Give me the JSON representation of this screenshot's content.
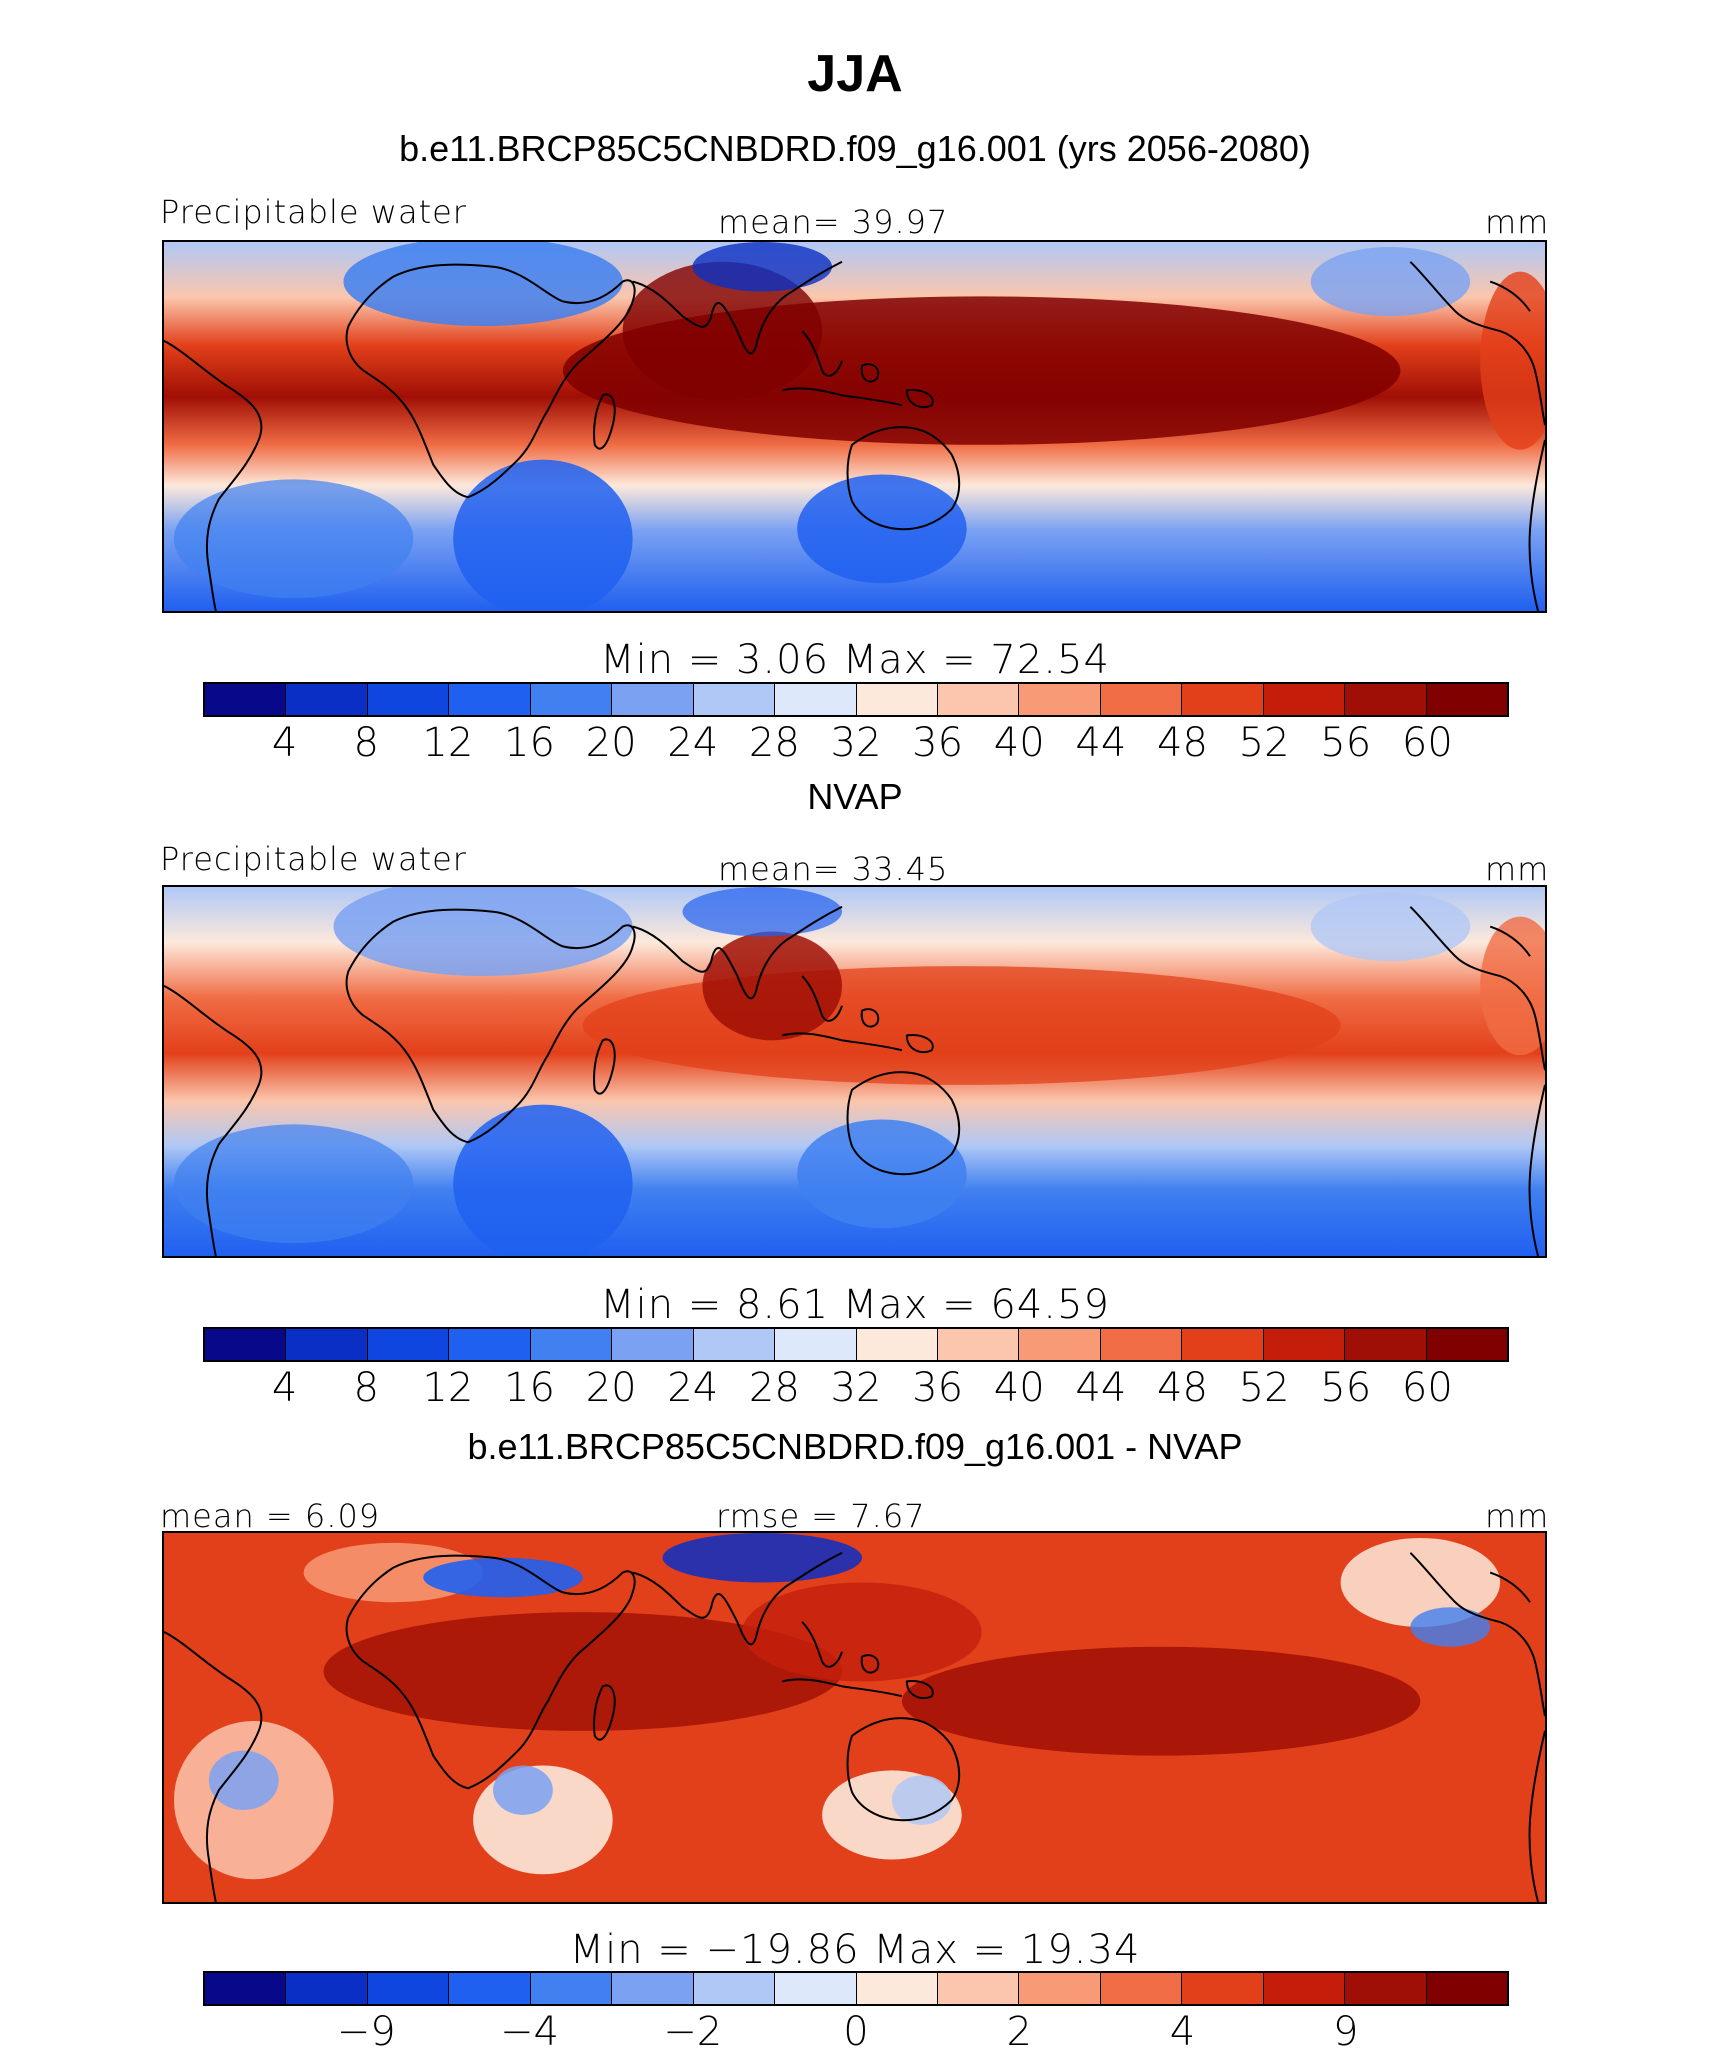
{
  "figure": {
    "title": "JJA",
    "palette": [
      "#08088a",
      "#0a2fc4",
      "#0f46df",
      "#2060f0",
      "#4080f0",
      "#7ba2f2",
      "#b0c8f5",
      "#dde8fb",
      "#fde9dc",
      "#fbc6ad",
      "#f79a75",
      "#f06d45",
      "#e2401a",
      "#c41e0b",
      "#a00f05",
      "#800000"
    ],
    "land_outline_color": "#000000"
  },
  "panels": [
    {
      "id": "model",
      "subtitle": "b.e11.BRCP85C5CNBDRD.f09_g16.001 (yrs 2056-2080)",
      "left_label": "Precipitable water",
      "center_label": "mean=   39.97",
      "right_label": "mm",
      "minmax": "Min =    3.06  Max =   72.54",
      "colorbar_ticks": [
        "4",
        "8",
        "12",
        "16",
        "20",
        "24",
        "28",
        "32",
        "36",
        "40",
        "44",
        "48",
        "52",
        "56",
        "60"
      ]
    },
    {
      "id": "obs",
      "subtitle": "NVAP",
      "left_label": "Precipitable water",
      "center_label": "mean=   33.45",
      "right_label": "mm",
      "minmax": "Min =    8.61  Max =   64.59",
      "colorbar_ticks": [
        "4",
        "8",
        "12",
        "16",
        "20",
        "24",
        "28",
        "32",
        "36",
        "40",
        "44",
        "48",
        "52",
        "56",
        "60"
      ]
    },
    {
      "id": "diff",
      "subtitle": "b.e11.BRCP85C5CNBDRD.f09_g16.001 - NVAP",
      "left_label": "mean =    6.09",
      "center_label": "rmse =    7.67",
      "right_label": "mm",
      "minmax": "Min = −19.86  Max =   19.34",
      "colorbar_ticks": [
        "−9",
        "−4",
        "−2",
        "0",
        "2",
        "4",
        "9"
      ]
    }
  ]
}
